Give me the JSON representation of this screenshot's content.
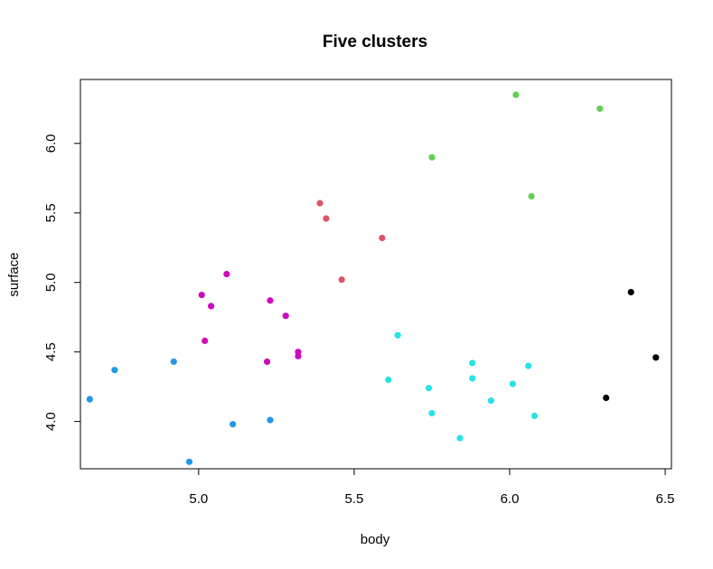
{
  "chart_data": {
    "type": "scatter",
    "title": "Five clusters",
    "xlabel": "body",
    "ylabel": "surface",
    "xlim": [
      4.62,
      6.52
    ],
    "ylim": [
      3.66,
      6.46
    ],
    "xticks": [
      5.0,
      5.5,
      6.0,
      6.5
    ],
    "xtick_labels": [
      "5.0",
      "5.5",
      "6.0",
      "6.5"
    ],
    "yticks": [
      4.0,
      4.5,
      5.0,
      5.5,
      6.0
    ],
    "ytick_labels": [
      "4.0",
      "4.5",
      "5.0",
      "5.5",
      "6.0"
    ],
    "grid": false,
    "legend": "none",
    "series": [
      {
        "color": "#2297E6",
        "points": [
          {
            "x": 4.65,
            "y": 4.16
          },
          {
            "x": 4.73,
            "y": 4.37
          },
          {
            "x": 4.92,
            "y": 4.43
          },
          {
            "x": 4.97,
            "y": 3.71
          },
          {
            "x": 5.11,
            "y": 3.98
          },
          {
            "x": 5.23,
            "y": 4.01
          }
        ]
      },
      {
        "color": "#CD0BBC",
        "points": [
          {
            "x": 5.01,
            "y": 4.91
          },
          {
            "x": 5.02,
            "y": 4.58
          },
          {
            "x": 5.04,
            "y": 4.83
          },
          {
            "x": 5.09,
            "y": 5.06
          },
          {
            "x": 5.22,
            "y": 4.43
          },
          {
            "x": 5.23,
            "y": 4.87
          },
          {
            "x": 5.28,
            "y": 4.76
          },
          {
            "x": 5.32,
            "y": 4.5
          },
          {
            "x": 5.32,
            "y": 4.47
          }
        ]
      },
      {
        "color": "#DF536B",
        "points": [
          {
            "x": 5.39,
            "y": 5.57
          },
          {
            "x": 5.41,
            "y": 5.46
          },
          {
            "x": 5.46,
            "y": 5.02
          },
          {
            "x": 5.59,
            "y": 5.32
          }
        ]
      },
      {
        "color": "#61D04F",
        "points": [
          {
            "x": 5.75,
            "y": 5.9
          },
          {
            "x": 6.02,
            "y": 6.35
          },
          {
            "x": 6.07,
            "y": 5.62
          },
          {
            "x": 6.29,
            "y": 6.25
          }
        ]
      },
      {
        "color": "#28E2E5",
        "points": [
          {
            "x": 5.61,
            "y": 4.3
          },
          {
            "x": 5.64,
            "y": 4.62
          },
          {
            "x": 5.74,
            "y": 4.24
          },
          {
            "x": 5.75,
            "y": 4.06
          },
          {
            "x": 5.84,
            "y": 3.88
          },
          {
            "x": 5.88,
            "y": 4.42
          },
          {
            "x": 5.88,
            "y": 4.31
          },
          {
            "x": 5.94,
            "y": 4.15
          },
          {
            "x": 6.01,
            "y": 4.27
          },
          {
            "x": 6.06,
            "y": 4.4
          },
          {
            "x": 6.08,
            "y": 4.04
          }
        ]
      },
      {
        "color": "#000000",
        "points": [
          {
            "x": 6.31,
            "y": 4.17
          },
          {
            "x": 6.39,
            "y": 4.93
          },
          {
            "x": 6.47,
            "y": 4.46
          }
        ]
      }
    ]
  }
}
